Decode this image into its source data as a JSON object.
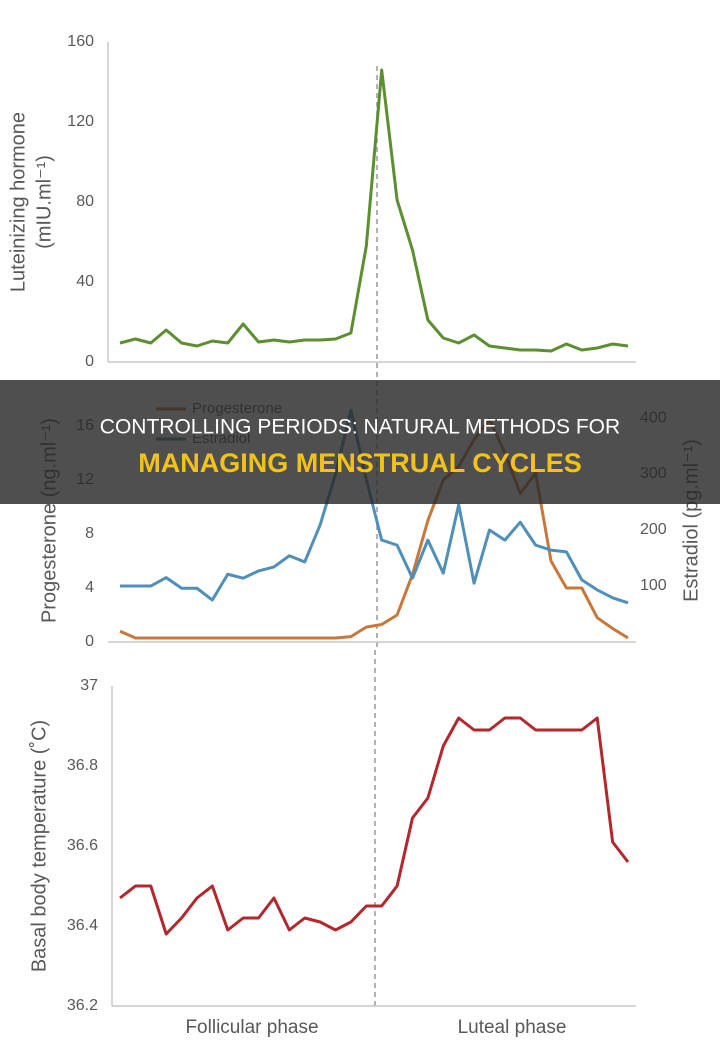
{
  "banner": {
    "line1": "CONTROLLING PERIODS: NATURAL METHODS FOR",
    "line2": "MANAGING MENSTRUAL CYCLES"
  },
  "chart_data": [
    {
      "type": "line",
      "y_label": [
        "Luteinizing hormone",
        "(mIU.ml⁻¹)"
      ],
      "ylim": [
        0,
        160
      ],
      "yticks": [
        0,
        40,
        80,
        120,
        160
      ],
      "series": [
        {
          "name": "Luteinizing hormone",
          "color": "#5b8f2f",
          "values": [
            9.5,
            11.5,
            9.5,
            16,
            9.5,
            8,
            10.5,
            9.5,
            19,
            10,
            11,
            10,
            11,
            11,
            11.5,
            14.5,
            58,
            146,
            81,
            56,
            21,
            12,
            9.5,
            13.5,
            8,
            7,
            6,
            6,
            5.5,
            9,
            6,
            7,
            9,
            8
          ]
        }
      ]
    },
    {
      "type": "line",
      "y_label": [
        "Progesterone (ng.ml⁻¹)"
      ],
      "y2_label": [
        "Estradiol (pg.ml⁻¹)"
      ],
      "ylim": [
        0,
        18
      ],
      "yticks": [
        0,
        4,
        8,
        12,
        16
      ],
      "y2lim": [
        0,
        434
      ],
      "y2ticks": [
        100,
        200,
        300,
        400
      ],
      "legend": "top-left",
      "series": [
        {
          "name": "Progesterone",
          "color": "#c8783a",
          "values": [
            0.8,
            0.3,
            0.3,
            0.3,
            0.3,
            0.3,
            0.3,
            0.3,
            0.3,
            0.3,
            0.3,
            0.3,
            0.3,
            0.3,
            0.3,
            0.4,
            1.1,
            1.3,
            2,
            5,
            9,
            12,
            13,
            15,
            16.5,
            14,
            11,
            12.5,
            6,
            4,
            4,
            1.8,
            1,
            0.3
          ]
        },
        {
          "name": "Estradiol",
          "color": "#4f8fb8",
          "axis": "y2",
          "values": [
            100,
            100,
            100,
            115,
            96,
            96,
            75,
            121,
            114,
            127,
            134,
            154,
            143,
            209,
            300,
            414,
            290,
            182,
            173,
            114,
            182,
            123,
            245,
            105,
            200,
            182,
            214,
            173,
            164,
            161,
            111,
            93,
            79,
            70
          ]
        }
      ]
    },
    {
      "type": "line",
      "y_label": [
        "Basal body temperature (˚C)"
      ],
      "ylim": [
        36.2,
        37
      ],
      "yticks": [
        36.2,
        36.4,
        36.6,
        36.8,
        37
      ],
      "phase_labels": [
        "Follicular phase",
        "Luteal phase"
      ],
      "series": [
        {
          "name": "Basal body temperature",
          "color": "#b3282c",
          "values": [
            36.47,
            36.5,
            36.5,
            36.38,
            36.42,
            36.47,
            36.5,
            36.39,
            36.42,
            36.42,
            36.47,
            36.39,
            36.42,
            36.41,
            36.39,
            36.41,
            36.45,
            36.45,
            36.5,
            36.67,
            36.72,
            36.85,
            36.92,
            36.89,
            36.89,
            36.92,
            36.92,
            36.89,
            36.89,
            36.89,
            36.89,
            36.92,
            36.61,
            36.56
          ]
        }
      ]
    }
  ]
}
